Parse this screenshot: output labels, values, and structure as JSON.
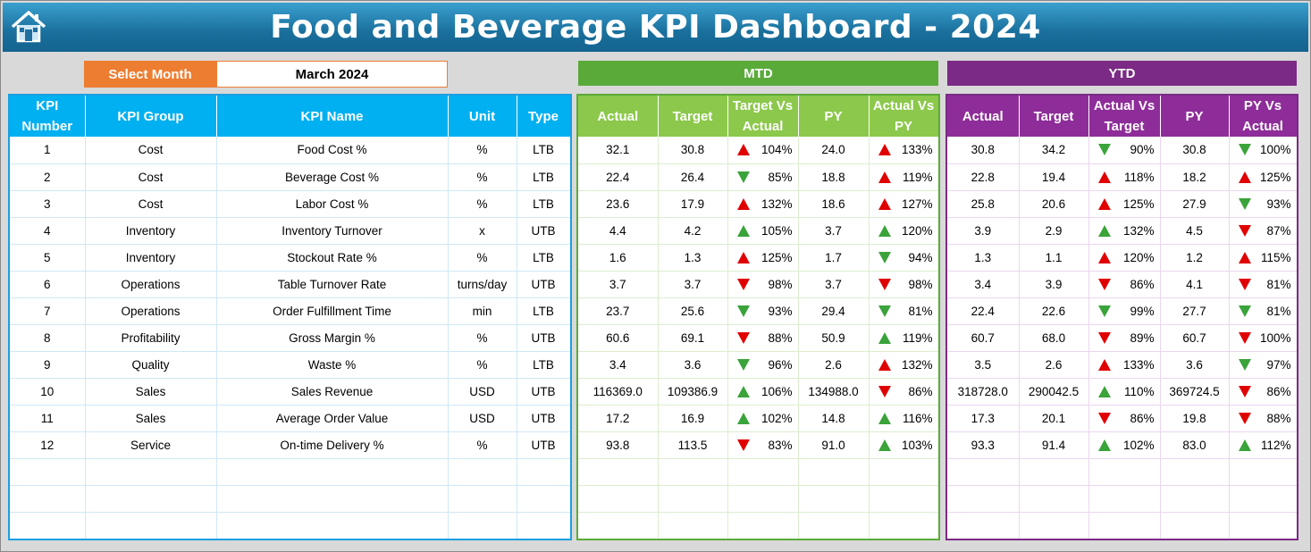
{
  "title": "Food and Beverage KPI Dashboard - 2024",
  "colors": {
    "title_bar": "#1a6f9c",
    "month_label": "#ed7d31",
    "kpi": "#00b0f0",
    "mtd": "#5aaa3a",
    "ytd": "#7b2a85",
    "up_bad": "#e00000",
    "good": "#3aa33a"
  },
  "controls": {
    "select_month_label": "Select Month",
    "month_value": "March 2024"
  },
  "sections": {
    "mtd": "MTD",
    "ytd": "YTD"
  },
  "kpi_columns": [
    "KPI Number",
    "KPI Group",
    "KPI Name",
    "Unit",
    "Type"
  ],
  "mtd_columns": [
    "Actual",
    "Target",
    "Target Vs Actual",
    "PY",
    "Actual Vs PY"
  ],
  "ytd_columns": [
    "Actual",
    "Target",
    "Actual Vs Target",
    "PY",
    "PY Vs Actual"
  ],
  "rows": [
    {
      "num": "1",
      "group": "Cost",
      "name": "Food Cost %",
      "unit": "%",
      "type": "LTB",
      "mtd": {
        "actual": "32.1",
        "target": "30.8",
        "tva": "104%",
        "tva_icon": "up-red",
        "py": "24.0",
        "avp": "133%",
        "avp_icon": "up-red"
      },
      "ytd": {
        "actual": "30.8",
        "target": "34.2",
        "avt": "90%",
        "avt_icon": "down-green",
        "py": "30.8",
        "pva": "100%",
        "pva_icon": "down-green"
      }
    },
    {
      "num": "2",
      "group": "Cost",
      "name": "Beverage Cost %",
      "unit": "%",
      "type": "LTB",
      "mtd": {
        "actual": "22.4",
        "target": "26.4",
        "tva": "85%",
        "tva_icon": "down-green",
        "py": "18.8",
        "avp": "119%",
        "avp_icon": "up-red"
      },
      "ytd": {
        "actual": "22.8",
        "target": "19.4",
        "avt": "118%",
        "avt_icon": "up-red",
        "py": "18.2",
        "pva": "125%",
        "pva_icon": "up-red"
      }
    },
    {
      "num": "3",
      "group": "Cost",
      "name": "Labor Cost %",
      "unit": "%",
      "type": "LTB",
      "mtd": {
        "actual": "23.6",
        "target": "17.9",
        "tva": "132%",
        "tva_icon": "up-red",
        "py": "18.6",
        "avp": "127%",
        "avp_icon": "up-red"
      },
      "ytd": {
        "actual": "25.8",
        "target": "20.6",
        "avt": "125%",
        "avt_icon": "up-red",
        "py": "27.9",
        "pva": "93%",
        "pva_icon": "down-green"
      }
    },
    {
      "num": "4",
      "group": "Inventory",
      "name": "Inventory Turnover",
      "unit": "x",
      "type": "UTB",
      "mtd": {
        "actual": "4.4",
        "target": "4.2",
        "tva": "105%",
        "tva_icon": "up-green",
        "py": "3.7",
        "avp": "120%",
        "avp_icon": "up-green"
      },
      "ytd": {
        "actual": "3.9",
        "target": "2.9",
        "avt": "132%",
        "avt_icon": "up-green",
        "py": "4.5",
        "pva": "87%",
        "pva_icon": "down-red"
      }
    },
    {
      "num": "5",
      "group": "Inventory",
      "name": "Stockout Rate %",
      "unit": "%",
      "type": "LTB",
      "mtd": {
        "actual": "1.6",
        "target": "1.3",
        "tva": "125%",
        "tva_icon": "up-red",
        "py": "1.7",
        "avp": "94%",
        "avp_icon": "down-green"
      },
      "ytd": {
        "actual": "1.3",
        "target": "1.1",
        "avt": "120%",
        "avt_icon": "up-red",
        "py": "1.2",
        "pva": "115%",
        "pva_icon": "up-red"
      }
    },
    {
      "num": "6",
      "group": "Operations",
      "name": "Table Turnover Rate",
      "unit": "turns/day",
      "type": "UTB",
      "mtd": {
        "actual": "3.7",
        "target": "3.7",
        "tva": "98%",
        "tva_icon": "down-red",
        "py": "3.7",
        "avp": "98%",
        "avp_icon": "down-red"
      },
      "ytd": {
        "actual": "3.4",
        "target": "3.9",
        "avt": "86%",
        "avt_icon": "down-red",
        "py": "4.1",
        "pva": "81%",
        "pva_icon": "down-red"
      }
    },
    {
      "num": "7",
      "group": "Operations",
      "name": "Order Fulfillment Time",
      "unit": "min",
      "type": "LTB",
      "mtd": {
        "actual": "23.7",
        "target": "25.6",
        "tva": "93%",
        "tva_icon": "down-green",
        "py": "29.4",
        "avp": "81%",
        "avp_icon": "down-green"
      },
      "ytd": {
        "actual": "22.4",
        "target": "22.6",
        "avt": "99%",
        "avt_icon": "down-green",
        "py": "27.7",
        "pva": "81%",
        "pva_icon": "down-green"
      }
    },
    {
      "num": "8",
      "group": "Profitability",
      "name": "Gross Margin %",
      "unit": "%",
      "type": "UTB",
      "mtd": {
        "actual": "60.6",
        "target": "69.1",
        "tva": "88%",
        "tva_icon": "down-red",
        "py": "50.9",
        "avp": "119%",
        "avp_icon": "up-green"
      },
      "ytd": {
        "actual": "60.7",
        "target": "68.0",
        "avt": "89%",
        "avt_icon": "down-red",
        "py": "60.7",
        "pva": "100%",
        "pva_icon": "down-red"
      }
    },
    {
      "num": "9",
      "group": "Quality",
      "name": "Waste %",
      "unit": "%",
      "type": "LTB",
      "mtd": {
        "actual": "3.4",
        "target": "3.6",
        "tva": "96%",
        "tva_icon": "down-green",
        "py": "2.6",
        "avp": "132%",
        "avp_icon": "up-red"
      },
      "ytd": {
        "actual": "3.5",
        "target": "2.6",
        "avt": "133%",
        "avt_icon": "up-red",
        "py": "3.6",
        "pva": "97%",
        "pva_icon": "down-green"
      }
    },
    {
      "num": "10",
      "group": "Sales",
      "name": "Sales Revenue",
      "unit": "USD",
      "type": "UTB",
      "mtd": {
        "actual": "116369.0",
        "target": "109386.9",
        "tva": "106%",
        "tva_icon": "up-green",
        "py": "134988.0",
        "avp": "86%",
        "avp_icon": "down-red"
      },
      "ytd": {
        "actual": "318728.0",
        "target": "290042.5",
        "avt": "110%",
        "avt_icon": "up-green",
        "py": "369724.5",
        "pva": "86%",
        "pva_icon": "down-red"
      }
    },
    {
      "num": "11",
      "group": "Sales",
      "name": "Average Order Value",
      "unit": "USD",
      "type": "UTB",
      "mtd": {
        "actual": "17.2",
        "target": "16.9",
        "tva": "102%",
        "tva_icon": "up-green",
        "py": "14.8",
        "avp": "116%",
        "avp_icon": "up-green"
      },
      "ytd": {
        "actual": "17.3",
        "target": "20.1",
        "avt": "86%",
        "avt_icon": "down-red",
        "py": "19.8",
        "pva": "88%",
        "pva_icon": "down-red"
      }
    },
    {
      "num": "12",
      "group": "Service",
      "name": "On-time Delivery %",
      "unit": "%",
      "type": "UTB",
      "mtd": {
        "actual": "93.8",
        "target": "113.5",
        "tva": "83%",
        "tva_icon": "down-red",
        "py": "91.0",
        "avp": "103%",
        "avp_icon": "up-green"
      },
      "ytd": {
        "actual": "93.3",
        "target": "91.4",
        "avt": "102%",
        "avt_icon": "up-green",
        "py": "83.0",
        "pva": "112%",
        "pva_icon": "up-green"
      }
    }
  ]
}
